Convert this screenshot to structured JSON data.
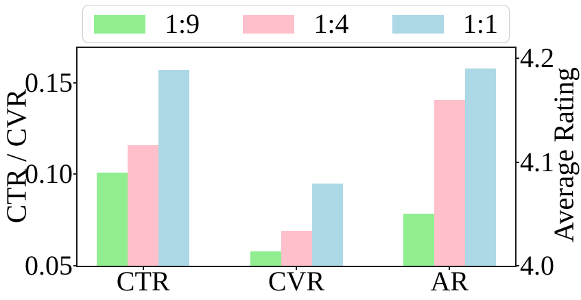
{
  "chart_data": {
    "type": "bar",
    "categories": [
      "CTR",
      "CVR",
      "AR"
    ],
    "category_axis": [
      "left",
      "left",
      "right"
    ],
    "series": [
      {
        "name": "1:9",
        "color": "#90EE90",
        "values": [
          0.101,
          0.058,
          4.05
        ]
      },
      {
        "name": "1:4",
        "color": "#FFC0CB",
        "values": [
          0.116,
          0.069,
          4.16
        ]
      },
      {
        "name": "1:1",
        "color": "#ADD8E6",
        "values": [
          0.157,
          0.095,
          4.19
        ]
      }
    ],
    "left_axis": {
      "label": "CTR / CVR",
      "ticks": [
        "0.05",
        "0.10",
        "0.15"
      ],
      "tick_values": [
        0.05,
        0.1,
        0.15
      ],
      "range": [
        0.05,
        0.169
      ]
    },
    "right_axis": {
      "label": "Average Rating",
      "ticks": [
        "4.0",
        "4.1",
        "4.2"
      ],
      "tick_values": [
        4.0,
        4.1,
        4.2
      ],
      "range": [
        4.0,
        4.21
      ]
    },
    "legend": {
      "position": "top",
      "entries": [
        "1:9",
        "1:4",
        "1:1"
      ]
    },
    "grid": false,
    "background": "#ffffff",
    "spine_color": "#1a1a1a"
  }
}
